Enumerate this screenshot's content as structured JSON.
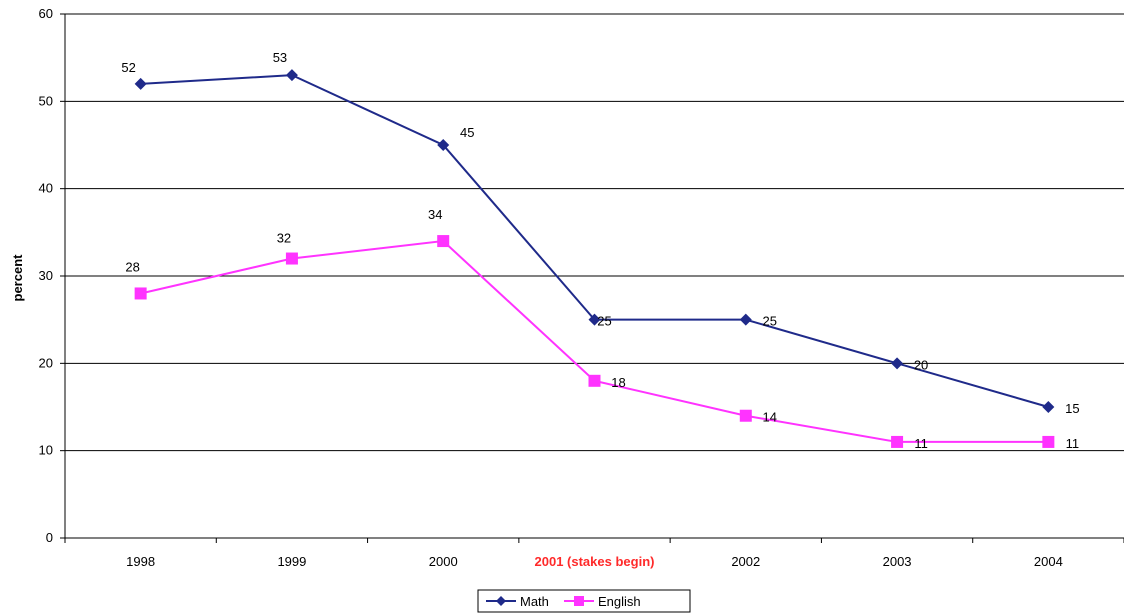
{
  "chart_data": {
    "type": "line",
    "categories": [
      "1998",
      "1999",
      "2000",
      "2001 (stakes begin)",
      "2002",
      "2003",
      "2004"
    ],
    "highlight_category": {
      "index": 3,
      "color": "#ff2a2a"
    },
    "ylabel": "percent",
    "ylim": [
      0,
      60
    ],
    "yticks": [
      0,
      10,
      20,
      30,
      40,
      50,
      60
    ],
    "grid": true,
    "legend_position": "bottom-center",
    "series": [
      {
        "name": "Math",
        "color": "#1f2a8a",
        "marker": "diamond",
        "values": [
          52,
          53,
          45,
          25,
          25,
          20,
          15
        ]
      },
      {
        "name": "English",
        "color": "#ff33ff",
        "marker": "square",
        "values": [
          28,
          32,
          34,
          18,
          14,
          11,
          11
        ]
      }
    ]
  }
}
